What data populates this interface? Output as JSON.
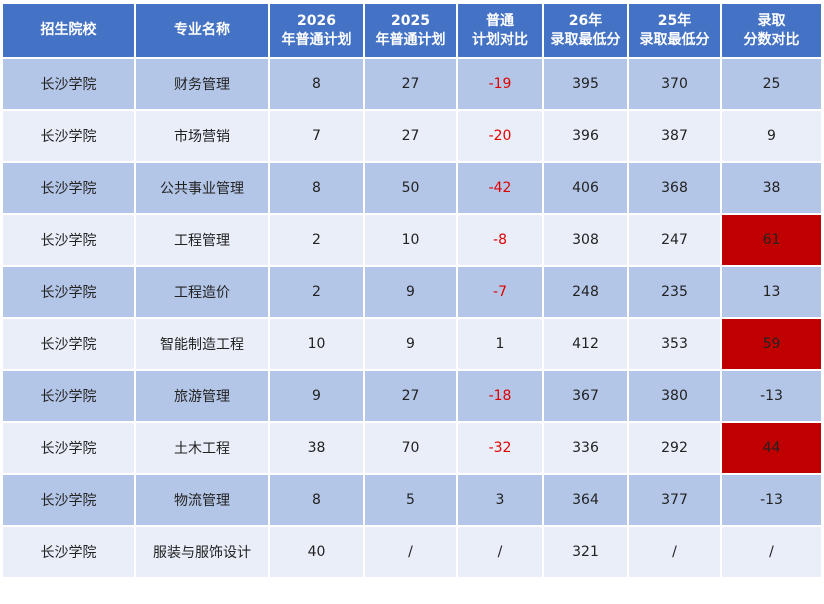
{
  "table": {
    "header": [
      "招生院校",
      "专业名称",
      "2026年普通计划",
      "2025年普通计划",
      "普通计划对比",
      "26年录取最低分",
      "25年录取最低分",
      "录取分数对比"
    ],
    "rows": [
      [
        "长沙学院",
        "财务管理",
        8,
        27,
        -19,
        395,
        370,
        25
      ],
      [
        "长沙学院",
        "市场营销",
        7,
        27,
        -20,
        396,
        387,
        9
      ],
      [
        "长沙学院",
        "公共事业管理",
        8,
        50,
        -42,
        406,
        368,
        38
      ],
      [
        "长沙学院",
        "工程管理",
        2,
        10,
        -8,
        308,
        247,
        61
      ],
      [
        "长沙学院",
        "工程造价",
        2,
        9,
        -7,
        248,
        235,
        13
      ],
      [
        "长沙学院",
        "智能制造工程",
        10,
        9,
        1,
        412,
        353,
        59
      ],
      [
        "长沙学院",
        "旅游管理",
        9,
        27,
        -18,
        367,
        380,
        -13
      ],
      [
        "长沙学院",
        "土木工程",
        38,
        70,
        -32,
        336,
        292,
        44
      ],
      [
        "长沙学院",
        "物流管理",
        8,
        5,
        3,
        364,
        377,
        -13
      ],
      [
        "长沙学院",
        "服装与服饰设计",
        40,
        "/",
        "/",
        321,
        "/",
        "/"
      ]
    ]
  }
}
